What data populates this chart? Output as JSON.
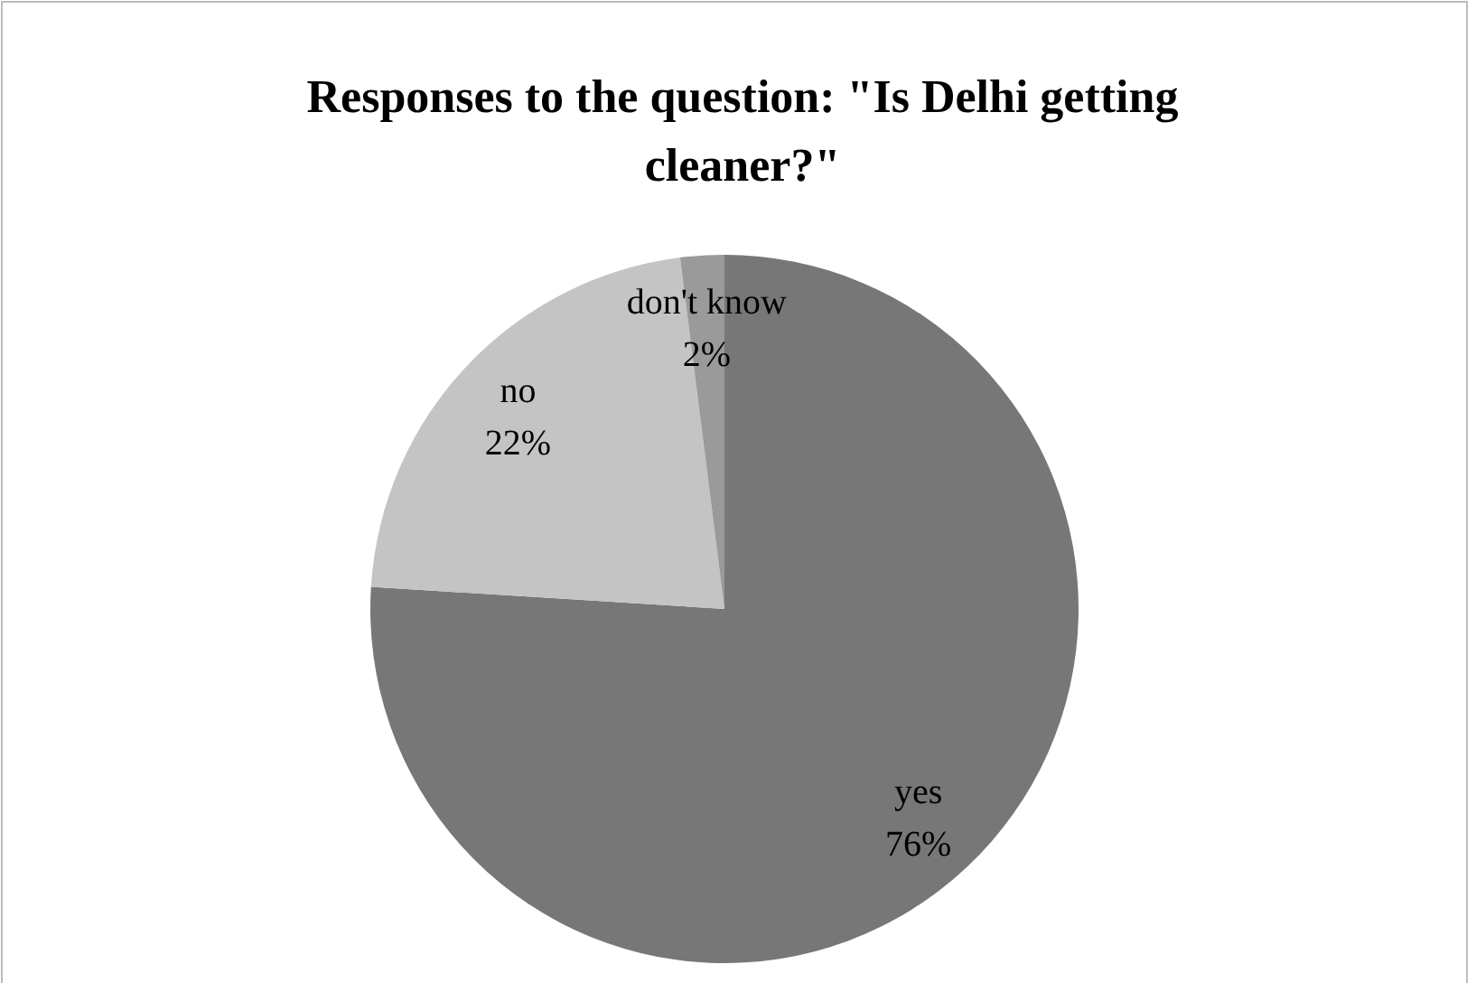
{
  "chart_data": {
    "type": "pie",
    "title": "Responses to the question: \"Is Delhi getting cleaner?\"",
    "categories": [
      "yes",
      "no",
      "don't know"
    ],
    "values": [
      76,
      22,
      2
    ],
    "colors": [
      "#777777",
      "#c4c4c4",
      "#9a9a9a"
    ],
    "value_labels": [
      "76%",
      "22%",
      "2%"
    ],
    "legend": false
  }
}
